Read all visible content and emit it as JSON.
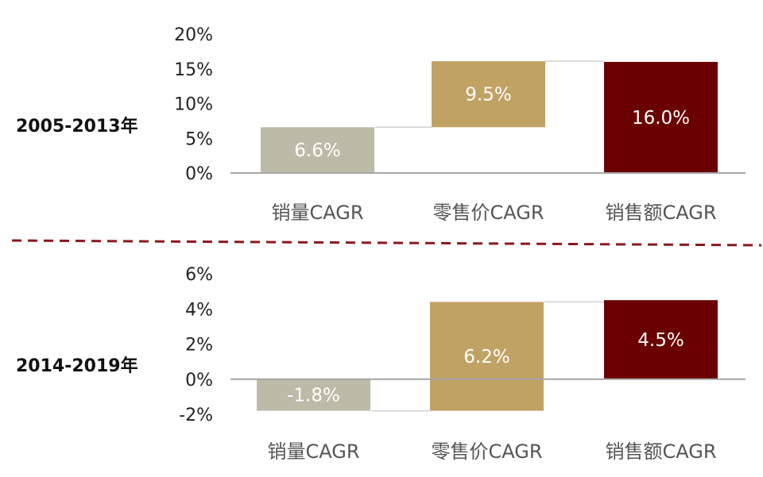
{
  "chart_data": [
    {
      "type": "bar",
      "period_label": "2005-2013年",
      "categories": [
        "销量CAGR",
        "零售价CAGR",
        "销售额CAGR"
      ],
      "values": [
        6.6,
        9.5,
        16.0
      ],
      "bases": [
        0,
        6.6,
        0
      ],
      "data_labels": [
        "6.6%",
        "9.5%",
        "16.0%"
      ],
      "ylim": [
        0,
        20
      ],
      "yticks": [
        "20%",
        "15%",
        "10%",
        "5%",
        "0%"
      ],
      "colors": [
        "#BDBBA8",
        "#C1A265",
        "#6B0000"
      ]
    },
    {
      "type": "bar",
      "period_label": "2014-2019年",
      "categories": [
        "销量CAGR",
        "零售价CAGR",
        "销售额CAGR"
      ],
      "values": [
        -1.8,
        6.2,
        4.5
      ],
      "bases": [
        0,
        -1.8,
        0
      ],
      "data_labels": [
        "-1.8%",
        "6.2%",
        "4.5%"
      ],
      "ylim": [
        -2,
        6
      ],
      "yticks": [
        "6%",
        "4%",
        "2%",
        "0%",
        "-2%"
      ],
      "colors": [
        "#BDBBA8",
        "#C1A265",
        "#6B0000"
      ]
    }
  ]
}
